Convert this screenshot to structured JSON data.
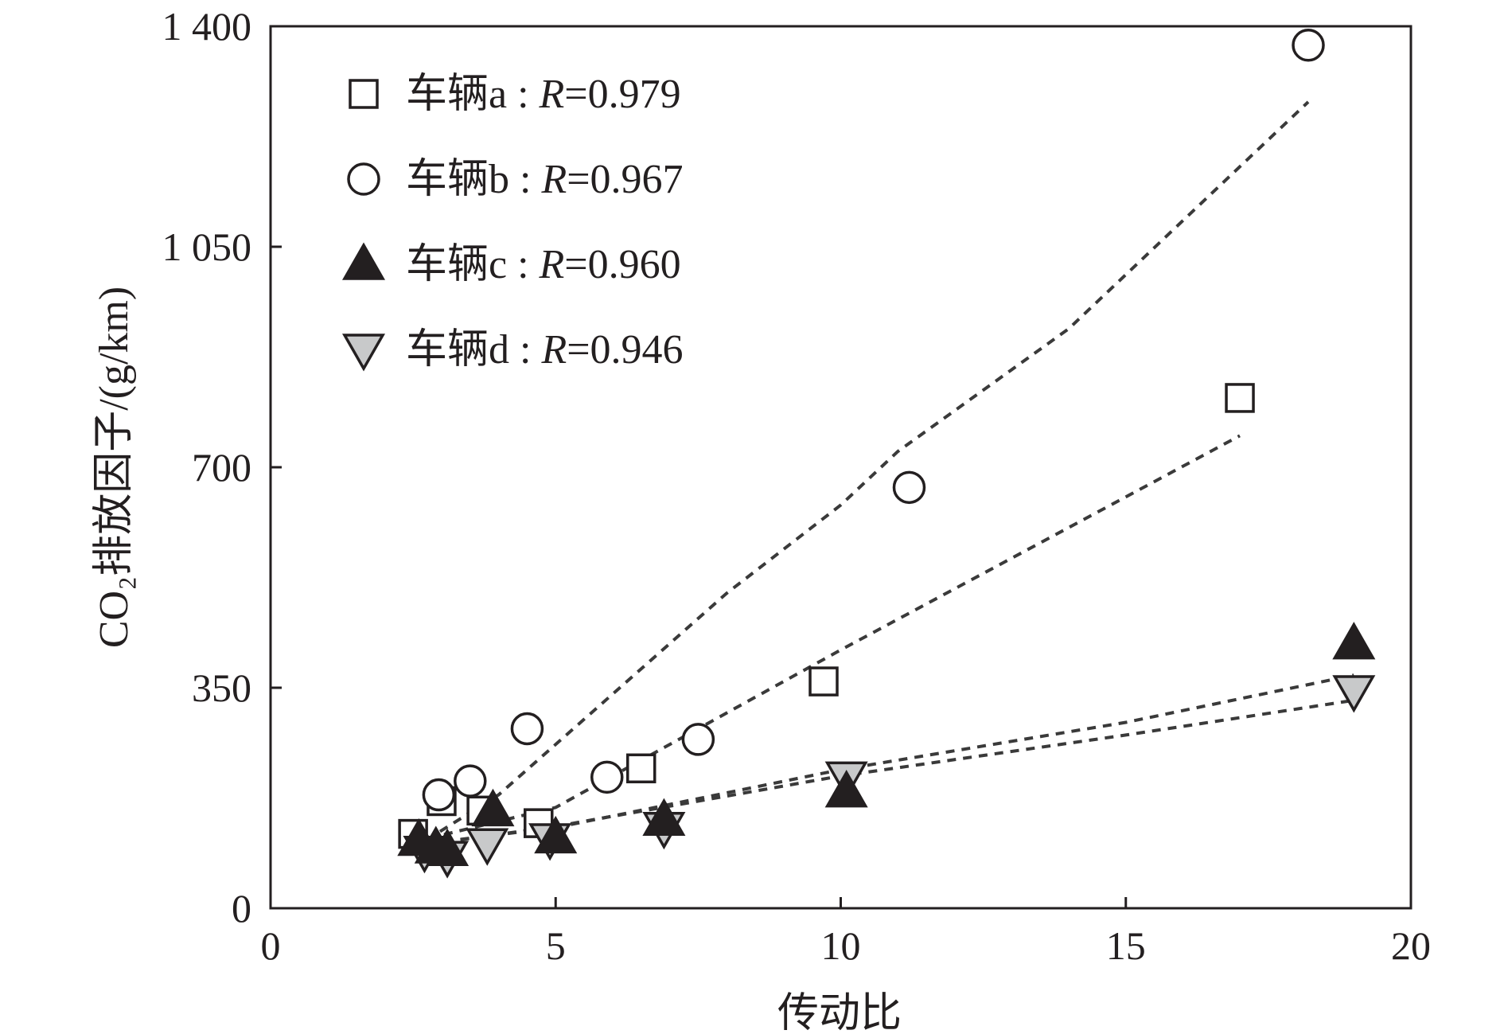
{
  "chart_data": {
    "type": "scatter",
    "xlabel": "传动比",
    "ylabel": "CO₂排放因子/(g/km)",
    "xlim": [
      0,
      20
    ],
    "ylim": [
      0,
      1400
    ],
    "xticks": [
      0,
      5,
      10,
      15,
      20
    ],
    "yticks": [
      0,
      350,
      700,
      1050,
      1400
    ],
    "xtick_labels": [
      "0",
      "5",
      "10",
      "15",
      "20"
    ],
    "ytick_labels": [
      "0",
      "350",
      "700",
      "1 050",
      "1 400"
    ],
    "grid": false,
    "legend_position": "top-left",
    "series": [
      {
        "name": "车辆a",
        "r_label": "R=0.979",
        "marker": "square",
        "fill": "#ffffff",
        "points": [
          [
            2.5,
            118
          ],
          [
            3.0,
            170
          ],
          [
            3.7,
            155
          ],
          [
            4.7,
            135
          ],
          [
            6.5,
            222
          ],
          [
            9.7,
            360
          ],
          [
            17.0,
            810
          ]
        ],
        "fit": [
          [
            2.5,
            105
          ],
          [
            5,
            160
          ],
          [
            10,
            410
          ],
          [
            17.0,
            750
          ]
        ]
      },
      {
        "name": "车辆b",
        "r_label": "R=0.967",
        "marker": "circle",
        "fill": "#ffffff",
        "points": [
          [
            2.95,
            180
          ],
          [
            3.5,
            202
          ],
          [
            4.5,
            285
          ],
          [
            5.9,
            208
          ],
          [
            7.5,
            268
          ],
          [
            11.2,
            668
          ],
          [
            18.2,
            1370
          ]
        ],
        "fit": [
          [
            2.5,
            95
          ],
          [
            4,
            180
          ],
          [
            6,
            340
          ],
          [
            8,
            500
          ],
          [
            10,
            640
          ],
          [
            11.0,
            725
          ],
          [
            14,
            920
          ],
          [
            18.2,
            1280
          ]
        ]
      },
      {
        "name": "车辆c",
        "r_label": "R=0.960",
        "marker": "triangle-up",
        "fill": "#231f20",
        "points": [
          [
            2.6,
            108
          ],
          [
            2.9,
            96
          ],
          [
            3.1,
            92
          ],
          [
            3.9,
            155
          ],
          [
            5.0,
            112
          ],
          [
            6.9,
            140
          ],
          [
            10.1,
            185
          ],
          [
            19.0,
            420
          ]
        ],
        "fit": [
          [
            2.5,
            98
          ],
          [
            5,
            130
          ],
          [
            10,
            210
          ],
          [
            15,
            275
          ],
          [
            19.0,
            330
          ]
        ]
      },
      {
        "name": "车辆d",
        "r_label": "R=0.946",
        "marker": "triangle-down",
        "fill": "#c8c9ca",
        "points": [
          [
            2.7,
            90
          ],
          [
            3.1,
            82
          ],
          [
            3.8,
            102
          ],
          [
            4.9,
            110
          ],
          [
            6.9,
            128
          ],
          [
            10.1,
            208
          ],
          [
            19.0,
            345
          ]
        ],
        "fit": [
          [
            2.5,
            100
          ],
          [
            5,
            128
          ],
          [
            10,
            220
          ],
          [
            15,
            295
          ],
          [
            19.0,
            370
          ]
        ]
      }
    ]
  }
}
